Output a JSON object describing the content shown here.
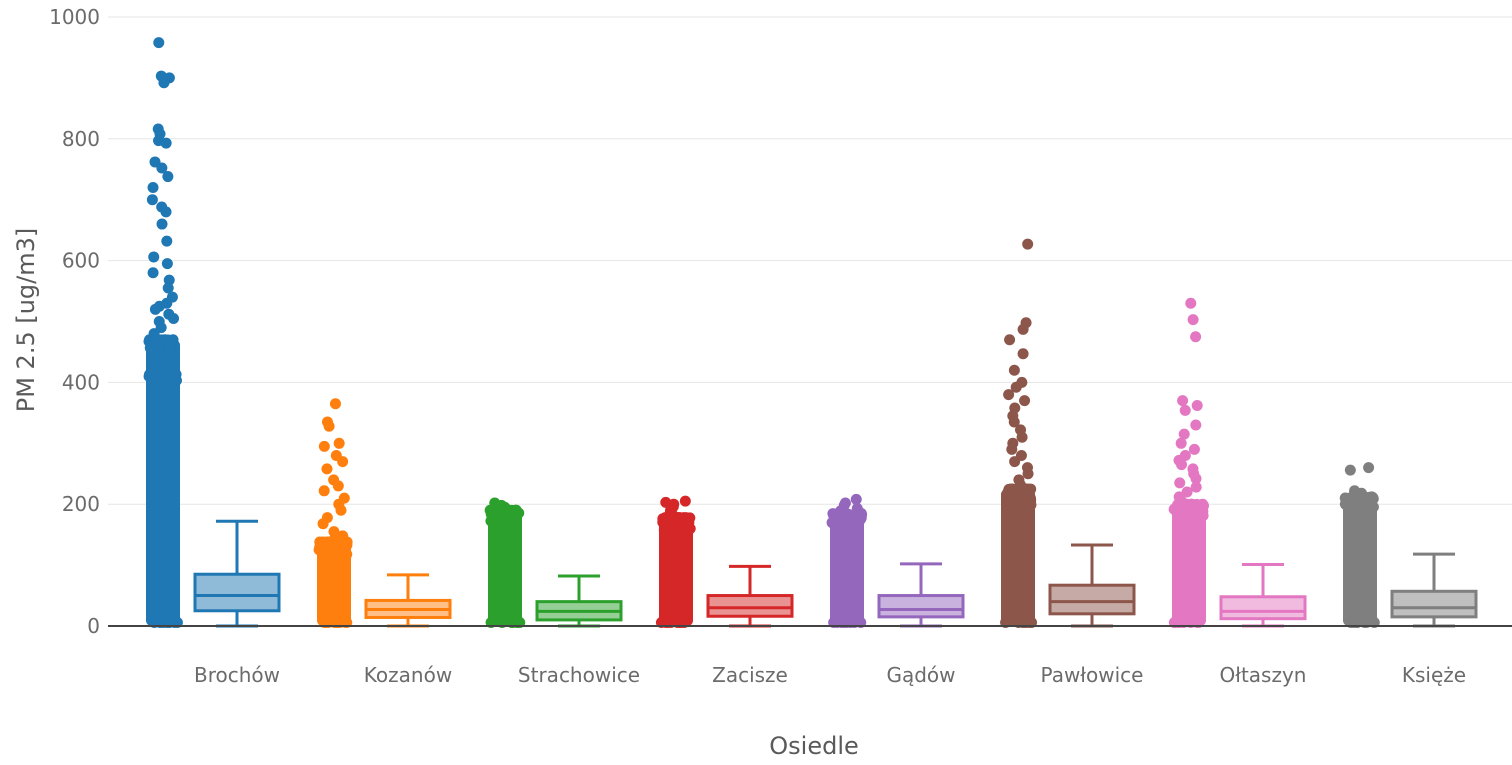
{
  "chart_data": {
    "type": "box",
    "xlabel": "Osiedle",
    "ylabel": "PM 2.5 [ug/m3]",
    "ylim": [
      0,
      1000
    ],
    "y_ticks": [
      0,
      200,
      400,
      600,
      800,
      1000
    ],
    "grid": true,
    "legend": "none",
    "boxpoints": "all",
    "categories": [
      "Brochów",
      "Kozanów",
      "Strachowice",
      "Zacisze",
      "Gądów",
      "Pawłowice",
      "Ołtaszyn",
      "Księże"
    ],
    "series": [
      {
        "category": "Brochów",
        "color": "#1f77b4",
        "box": {
          "min": 0,
          "q1": 25,
          "median": 50,
          "q3": 85,
          "max": 172
        },
        "points_dense_max": 470,
        "outliers": [
          958,
          903,
          900,
          892,
          816,
          808,
          797,
          793,
          762,
          752,
          738,
          720,
          700,
          688,
          680,
          660,
          632,
          606,
          595,
          580,
          568,
          555,
          540,
          530,
          525,
          520,
          512,
          505,
          500,
          490,
          480,
          475,
          456,
          455
        ]
      },
      {
        "category": "Kozanów",
        "color": "#ff7f0e",
        "box": {
          "min": 0,
          "q1": 14,
          "median": 27,
          "q3": 42,
          "max": 84
        },
        "points_dense_max": 138,
        "outliers": [
          365,
          335,
          328,
          300,
          295,
          280,
          270,
          258,
          240,
          230,
          222,
          210,
          200,
          190,
          178,
          168,
          155,
          148,
          142
        ]
      },
      {
        "category": "Strachowice",
        "color": "#2ca02c",
        "box": {
          "min": 0,
          "q1": 10,
          "median": 24,
          "q3": 40,
          "max": 82
        },
        "points_dense_max": 190,
        "outliers": [
          202,
          198,
          195
        ]
      },
      {
        "category": "Zacisze",
        "color": "#d62728",
        "box": {
          "min": 0,
          "q1": 16,
          "median": 30,
          "q3": 50,
          "max": 98
        },
        "points_dense_max": 178,
        "outliers": [
          205,
          203,
          200,
          196,
          190,
          186,
          182
        ]
      },
      {
        "category": "Gądów",
        "color": "#9467bd",
        "box": {
          "min": 0,
          "q1": 15,
          "median": 27,
          "q3": 50,
          "max": 102
        },
        "points_dense_max": 185,
        "outliers": [
          208,
          202,
          198,
          193,
          189
        ]
      },
      {
        "category": "Pawłowice",
        "color": "#8c564b",
        "box": {
          "min": 0,
          "q1": 20,
          "median": 40,
          "q3": 67,
          "max": 133
        },
        "points_dense_max": 225,
        "outliers": [
          627,
          498,
          487,
          470,
          447,
          420,
          400,
          392,
          380,
          370,
          358,
          345,
          335,
          322,
          310,
          300,
          290,
          280,
          270,
          260,
          250,
          240,
          232
        ]
      },
      {
        "category": "Ołtaszyn",
        "color": "#e377c2",
        "box": {
          "min": 0,
          "q1": 12,
          "median": 24,
          "q3": 48,
          "max": 101
        },
        "points_dense_max": 200,
        "outliers": [
          530,
          503,
          475,
          370,
          362,
          354,
          330,
          315,
          300,
          290,
          280,
          272,
          265,
          258,
          250,
          242,
          235,
          228,
          220,
          212,
          205
        ]
      },
      {
        "category": "Księże",
        "color": "#7f7f7f",
        "box": {
          "min": 0,
          "q1": 15,
          "median": 30,
          "q3": 57,
          "max": 118
        },
        "points_dense_max": 212,
        "outliers": [
          260,
          256,
          222,
          218
        ]
      }
    ]
  }
}
